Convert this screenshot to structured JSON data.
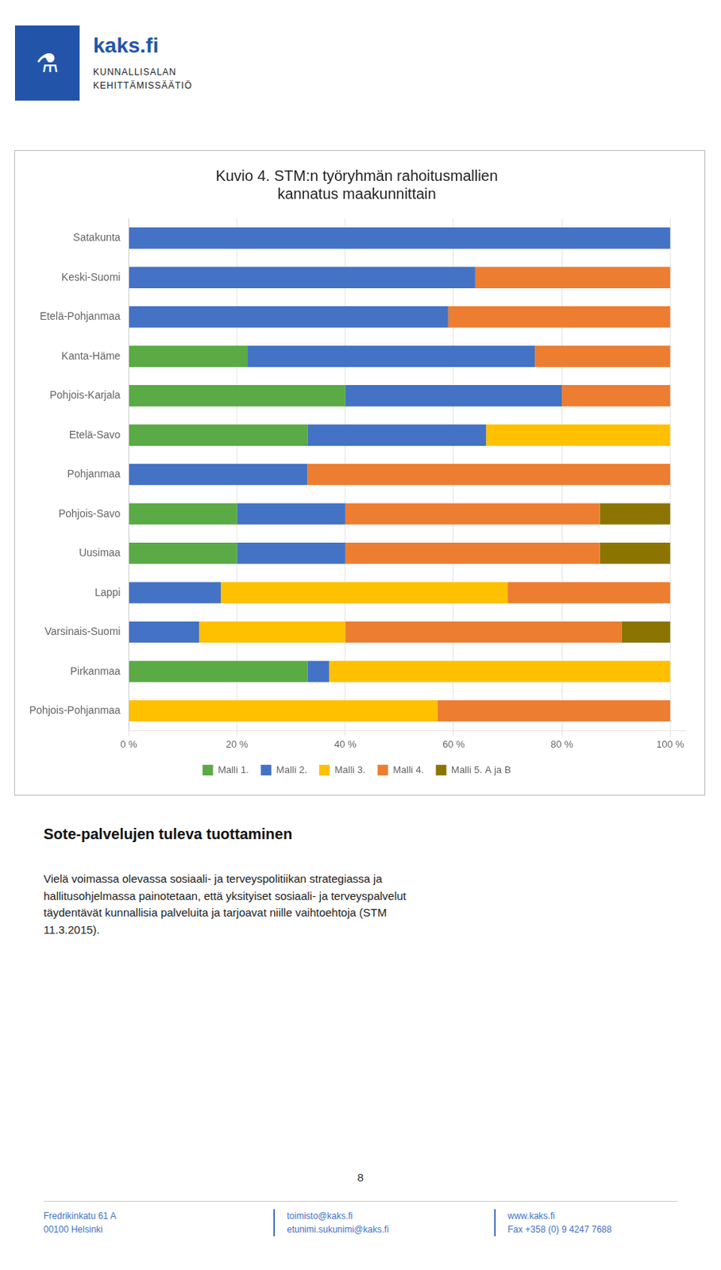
{
  "chart_data": {
    "type": "bar",
    "orientation": "horizontal",
    "stacked": true,
    "title": [
      "Kuvio 4. STM:n työryhmän rahoitusmallien",
      "kannatus maakunnittain"
    ],
    "categories": [
      "Satakunta",
      "Keski-Suomi",
      "Etelä-Pohjanmaa",
      "Kanta-Häme",
      "Pohjois-Karjala",
      "Etelä-Savo",
      "Pohjanmaa",
      "Pohjois-Savo",
      "Uusimaa",
      "Lappi",
      "Varsinais-Suomi",
      "Pirkanmaa",
      "Pohjois-Pohjanmaa"
    ],
    "series": [
      {
        "name": "Malli 1.",
        "color": "#5aaa46",
        "values": [
          0,
          0,
          0,
          22,
          40,
          33,
          0,
          20,
          20,
          0,
          0,
          33,
          0
        ]
      },
      {
        "name": "Malli 2.",
        "color": "#4472c4",
        "values": [
          100,
          64,
          59,
          53,
          40,
          33,
          33,
          20,
          20,
          17,
          13,
          4,
          0
        ]
      },
      {
        "name": "Malli 3.",
        "color": "#ffc000",
        "values": [
          0,
          0,
          0,
          0,
          0,
          34,
          0,
          0,
          0,
          53,
          27,
          63,
          57
        ]
      },
      {
        "name": "Malli 4.",
        "color": "#ed7d31",
        "values": [
          0,
          36,
          41,
          25,
          20,
          0,
          67,
          47,
          47,
          30,
          51,
          0,
          43
        ]
      },
      {
        "name": "Malli 5. A ja B",
        "color": "#8b7500",
        "values": [
          0,
          0,
          0,
          0,
          0,
          0,
          0,
          13,
          13,
          0,
          9,
          0,
          0
        ]
      }
    ],
    "xlim": [
      0,
      103
    ],
    "xticks": [
      {
        "value": 0,
        "label": "0 %"
      },
      {
        "value": 20,
        "label": "20 %"
      },
      {
        "value": 40,
        "label": "40 %"
      },
      {
        "value": 60,
        "label": "60 %"
      },
      {
        "value": 80,
        "label": "80 %"
      },
      {
        "value": 100,
        "label": "100 %"
      }
    ],
    "grid": true,
    "legend": "bottom"
  },
  "logo": {
    "icon": "⚗",
    "name": "kaks.fi",
    "lines": [
      "KUNNALLISALAN",
      "KEHITTÄMISSÄÄTIÖ"
    ]
  },
  "section_heading": "Sote-palvelujen tuleva tuottaminen",
  "body_text": "Vielä voimassa olevassa sosiaali- ja terveyspolitiikan strategiassa ja\nhallitusohjelmassa painotetaan, että yksityiset sosiaali- ja terveyspalvelut\ntäydentävät kunnallisia palveluita ja tarjoavat niille vaihtoehtoja (STM\n11.3.2015).",
  "page_number": "8",
  "footer": [
    [
      "Fredrikinkatu 61 A",
      "00100 Helsinki"
    ],
    [
      "toimisto@kaks.fi",
      "etunimi.sukunimi@kaks.fi"
    ],
    [
      "www.kaks.fi",
      "Fax +358 (0) 9 4247 7688"
    ]
  ]
}
